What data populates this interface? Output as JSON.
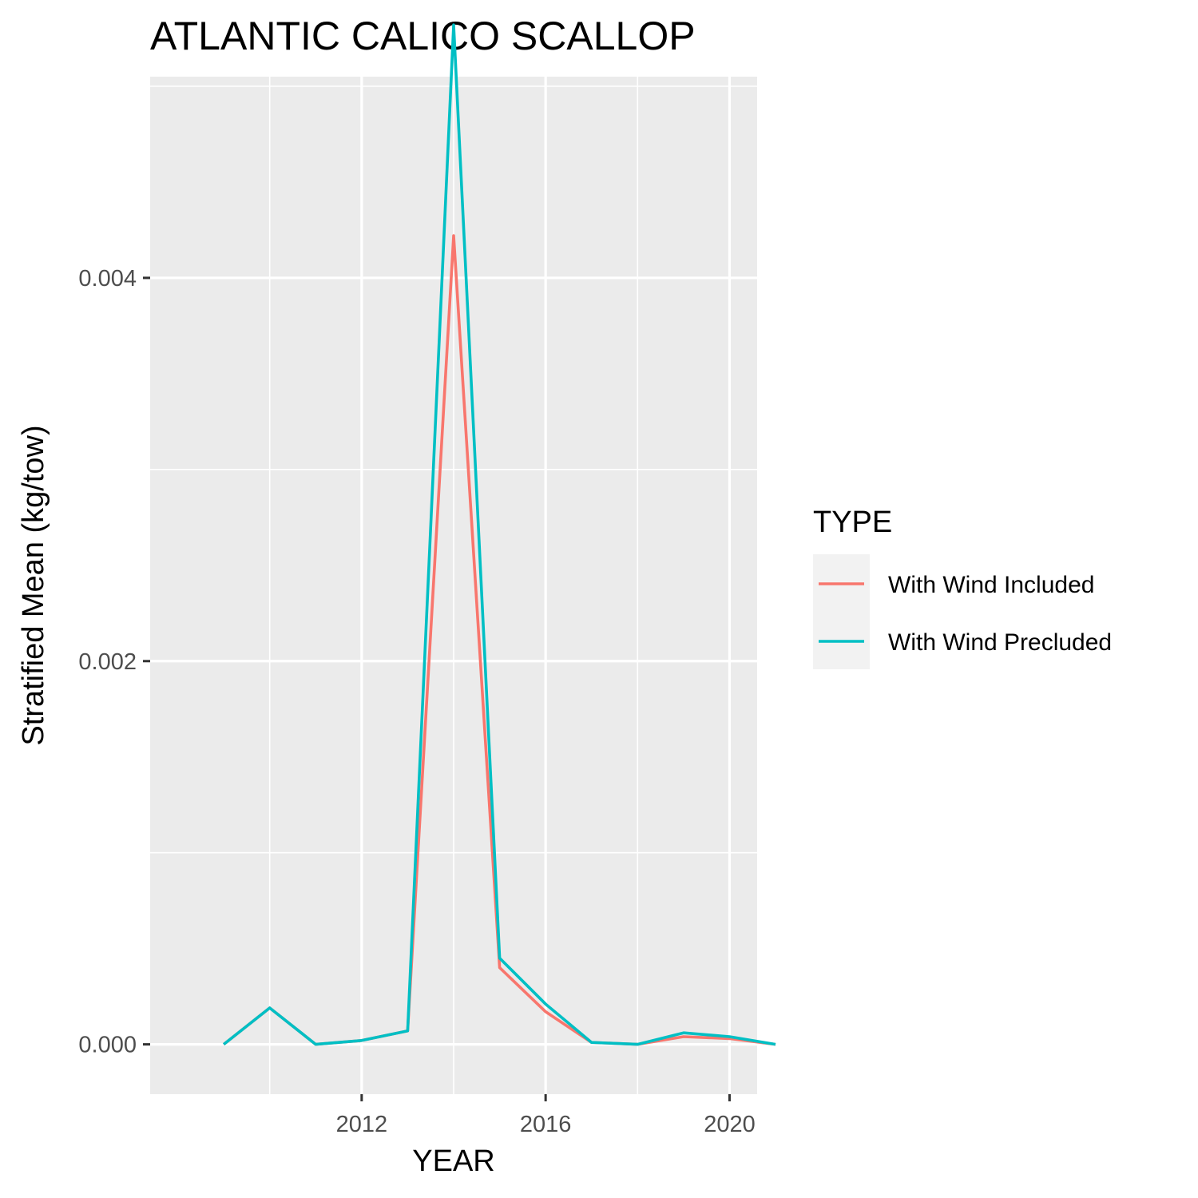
{
  "chart_data": {
    "type": "line",
    "title": "ATLANTIC CALICO SCALLOP",
    "xlabel": "YEAR",
    "ylabel": "Stratified Mean (kg/tow)",
    "x": [
      2009,
      2010,
      2011,
      2012,
      2013,
      2014,
      2015,
      2016,
      2017,
      2018,
      2019,
      2020,
      2021
    ],
    "x_ticks": [
      2012,
      2016,
      2020
    ],
    "x_tick_labels": [
      "2012",
      "2016",
      "2020"
    ],
    "y_ticks": [
      0.0,
      0.002,
      0.004
    ],
    "y_tick_labels": [
      "0.000",
      "0.002",
      "0.004"
    ],
    "xlim": [
      2007.4,
      2020.6
    ],
    "ylim": [
      -0.00026,
      0.00505
    ],
    "grid": true,
    "legend": {
      "title": "TYPE",
      "position": "right"
    },
    "series": [
      {
        "name": "With Wind Included",
        "color": "#f8766d",
        "values": [
          0.0,
          0.00019,
          0.0,
          2e-05,
          7e-05,
          0.00422,
          0.0004,
          0.00017,
          1e-05,
          0.0,
          4e-05,
          3e-05,
          0.0
        ]
      },
      {
        "name": "With Wind Precluded",
        "color": "#00bfc4",
        "values": [
          0.0,
          0.00019,
          0.0,
          2e-05,
          7e-05,
          0.00532,
          0.00045,
          0.00021,
          1e-05,
          0.0,
          6e-05,
          4e-05,
          0.0
        ]
      }
    ]
  }
}
